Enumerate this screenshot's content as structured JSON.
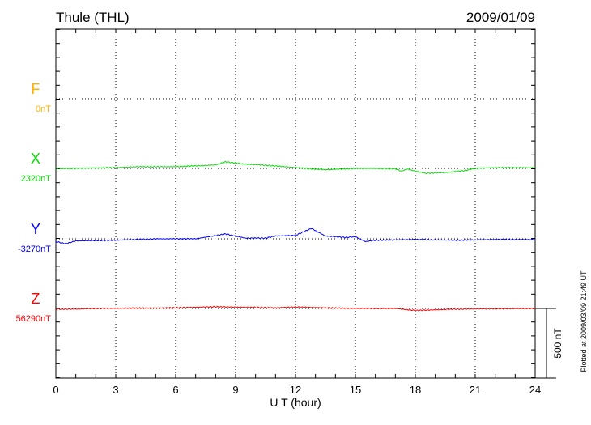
{
  "chart_data": {
    "type": "line",
    "title": "Thule (THL)",
    "date": "2009/01/09",
    "xlabel": "U T (hour)",
    "xlim": [
      0,
      24
    ],
    "xticks": [
      0,
      3,
      6,
      9,
      12,
      15,
      18,
      21,
      24
    ],
    "grid": true,
    "scale_bar": "500 nT",
    "plotted_note": "Plotted at 2009/03/09 21:49 UT",
    "series": [
      {
        "name": "F",
        "baseline": "0nT",
        "color": "#ffb000",
        "x": [],
        "y": []
      },
      {
        "name": "X",
        "baseline": "2320nT",
        "color": "#00e000",
        "x": [
          0,
          1,
          3,
          4,
          6,
          8,
          8.5,
          9.5,
          10.5,
          11.5,
          12.5,
          13.5,
          15,
          16,
          17,
          17.3,
          17.6,
          18,
          18.5,
          19.5,
          20.5,
          21,
          22,
          24
        ],
        "y": [
          0,
          0,
          6,
          12,
          12,
          25,
          47,
          30,
          23,
          12,
          0,
          -10,
          0,
          0,
          -3,
          -20,
          -5,
          -20,
          -35,
          -30,
          -15,
          0,
          5,
          5
        ]
      },
      {
        "name": "Y",
        "baseline": "-3270nT",
        "color": "#0000ff",
        "x": [
          0,
          0.5,
          1,
          3,
          5,
          7,
          8.5,
          9.5,
          10.5,
          11,
          12,
          12.8,
          13.5,
          14.5,
          15,
          15.5,
          16,
          18,
          20,
          22,
          24
        ],
        "y": [
          -20,
          -35,
          -15,
          -10,
          0,
          0,
          35,
          5,
          5,
          20,
          25,
          75,
          20,
          10,
          15,
          -20,
          -10,
          -5,
          -10,
          -5,
          -5
        ]
      },
      {
        "name": "Z",
        "baseline": "56290nT",
        "color": "#ff0000",
        "x": [
          0,
          1,
          2,
          6,
          8,
          11,
          12,
          15,
          17,
          18,
          20,
          24
        ],
        "y": [
          -5,
          -5,
          0,
          5,
          12,
          5,
          10,
          0,
          0,
          -15,
          -5,
          0
        ]
      }
    ]
  }
}
